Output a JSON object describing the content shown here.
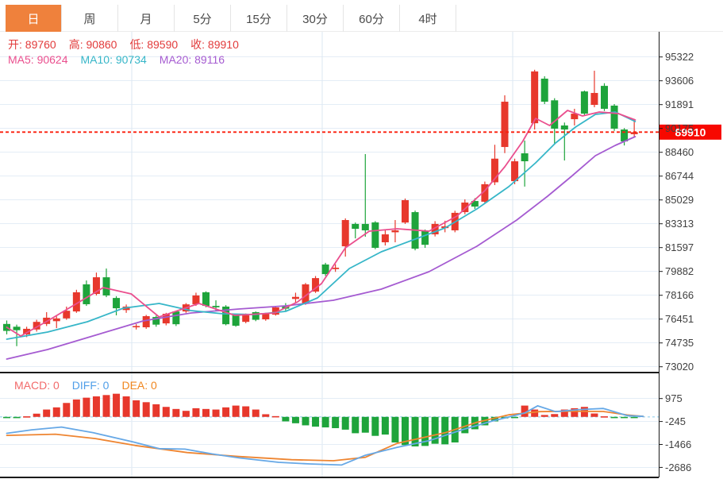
{
  "toolbar": {
    "active_color": "#ef813c",
    "tabs": [
      {
        "id": "day",
        "label": "日",
        "active": true
      },
      {
        "id": "week",
        "label": "周",
        "active": false
      },
      {
        "id": "month",
        "label": "月",
        "active": false
      },
      {
        "id": "5m",
        "label": "5分",
        "active": false
      },
      {
        "id": "15m",
        "label": "15分",
        "active": false
      },
      {
        "id": "30m",
        "label": "30分",
        "active": false
      },
      {
        "id": "60m",
        "label": "60分",
        "active": false
      },
      {
        "id": "4h",
        "label": "4时",
        "active": false
      }
    ]
  },
  "legend": {
    "ohlc_color": "#e23b3b",
    "ohlc": [
      {
        "label": "开:",
        "value": "89760"
      },
      {
        "label": "高:",
        "value": "90860"
      },
      {
        "label": "低:",
        "value": "89590"
      },
      {
        "label": "收:",
        "value": "89910"
      }
    ],
    "ma": [
      {
        "label": "MA5:",
        "value": "90624",
        "color": "#ea4f8e"
      },
      {
        "label": "MA10:",
        "value": "90734",
        "color": "#36b6c8"
      },
      {
        "label": "MA20:",
        "value": "89116",
        "color": "#a55bd1"
      }
    ],
    "macd": [
      {
        "label": "MACD:",
        "value": "0",
        "color": "#f26a6a"
      },
      {
        "label": "DIFF:",
        "value": "0",
        "color": "#4f9ee8"
      },
      {
        "label": "DEA:",
        "value": "0",
        "color": "#f0861e"
      }
    ]
  },
  "chart_data": {
    "type": "candlestick",
    "note": "Chinese convention: red = up candle, green = down candle. Candles are [open,high,low,close].",
    "colors": {
      "up": "#e7382c",
      "down": "#1ea43b",
      "ma5": "#ea4f8e",
      "ma10": "#36b6c8",
      "ma20": "#a55bd1",
      "diff": "#66a8e6",
      "dea": "#ee8531",
      "grid": "#e4edf6",
      "vgrid": "#dbe7f2",
      "axis_text": "#404040",
      "frame": "#1a1a1a",
      "dotted_line": "#fb1d0a",
      "tag_bg": "#f70800",
      "tag_text": "#ffffff",
      "zero_line": "#a8d8f0"
    },
    "price_axis": {
      "labels": [
        "95322",
        "93606",
        "91891",
        "90175",
        "88460",
        "86744",
        "85029",
        "83313",
        "81597",
        "79882",
        "78166",
        "76451",
        "74735",
        "73020"
      ],
      "max": 95322,
      "step": 1715.7
    },
    "last_price": "89910",
    "last_price_value": 89910,
    "candles": [
      [
        76100,
        76350,
        75350,
        75600
      ],
      [
        75900,
        76050,
        74500,
        75650
      ],
      [
        75350,
        75900,
        75150,
        75750
      ],
      [
        75700,
        76400,
        75550,
        76250
      ],
      [
        76100,
        76950,
        75950,
        76550
      ],
      [
        76300,
        76650,
        75800,
        76500
      ],
      [
        76500,
        77350,
        76400,
        77050
      ],
      [
        77000,
        78560,
        76900,
        78380
      ],
      [
        78950,
        79230,
        77400,
        77520
      ],
      [
        78260,
        79800,
        78150,
        79460
      ],
      [
        79460,
        80090,
        78030,
        78150
      ],
      [
        77970,
        78100,
        76720,
        77230
      ],
      [
        77100,
        77500,
        76900,
        77350
      ],
      [
        75900,
        76100,
        75700,
        75950
      ],
      [
        75860,
        76750,
        75750,
        76660
      ],
      [
        76600,
        76700,
        75900,
        76050
      ],
      [
        76140,
        76900,
        76000,
        76830
      ],
      [
        77000,
        77050,
        75950,
        76080
      ],
      [
        77000,
        77600,
        76900,
        77510
      ],
      [
        77520,
        78350,
        77400,
        78150
      ],
      [
        78380,
        78450,
        77300,
        77400
      ],
      [
        77400,
        77800,
        77000,
        77300
      ],
      [
        77350,
        77450,
        76000,
        76080
      ],
      [
        76720,
        76800,
        75900,
        75970
      ],
      [
        76250,
        76850,
        76150,
        76720
      ],
      [
        76950,
        77000,
        76300,
        76400
      ],
      [
        76430,
        76900,
        76330,
        76830
      ],
      [
        76770,
        77350,
        76700,
        77290
      ],
      [
        77350,
        77600,
        77050,
        77200
      ],
      [
        77900,
        78350,
        77650,
        78050
      ],
      [
        77580,
        79050,
        77480,
        78950
      ],
      [
        78430,
        79550,
        78330,
        79400
      ],
      [
        80380,
        80500,
        79550,
        79690
      ],
      [
        80050,
        80400,
        79850,
        80150
      ],
      [
        81690,
        83700,
        80950,
        83580
      ],
      [
        83300,
        83400,
        82260,
        82950
      ],
      [
        83300,
        88330,
        82380,
        82840
      ],
      [
        83410,
        83500,
        81480,
        81580
      ],
      [
        81980,
        82840,
        81750,
        82550
      ],
      [
        82700,
        83580,
        81980,
        82840
      ],
      [
        83400,
        85130,
        83300,
        85010
      ],
      [
        84150,
        84260,
        81400,
        81520
      ],
      [
        82800,
        82900,
        81580,
        81800
      ],
      [
        82550,
        83500,
        82400,
        83300
      ],
      [
        83000,
        83530,
        82700,
        83130
      ],
      [
        82840,
        84250,
        82700,
        84100
      ],
      [
        84150,
        85070,
        84000,
        84840
      ],
      [
        84950,
        85150,
        84380,
        84550
      ],
      [
        84900,
        86350,
        84780,
        86160
      ],
      [
        86300,
        89000,
        86100,
        88000
      ],
      [
        88840,
        92560,
        88400,
        92100
      ],
      [
        86380,
        88000,
        86160,
        87810
      ],
      [
        88385,
        89300,
        85990,
        87813
      ],
      [
        90550,
        94400,
        90100,
        94280
      ],
      [
        93760,
        93930,
        91930,
        92100
      ],
      [
        92200,
        92350,
        89010,
        90160
      ],
      [
        90390,
        90600,
        87870,
        90100
      ],
      [
        90840,
        91590,
        90390,
        91240
      ],
      [
        92840,
        92900,
        91100,
        91240
      ],
      [
        91870,
        94330,
        91700,
        92730
      ],
      [
        93240,
        93430,
        91430,
        91590
      ],
      [
        91820,
        91930,
        90000,
        90160
      ],
      [
        90100,
        90200,
        88950,
        89240
      ],
      [
        89760,
        90860,
        89590,
        89910
      ]
    ],
    "ma5_points": [
      [
        0,
        75860
      ],
      [
        1.4,
        75231
      ],
      [
        4.1,
        76317
      ],
      [
        7.3,
        77690
      ],
      [
        9.7,
        78719
      ],
      [
        12.5,
        78262
      ],
      [
        15.3,
        76603
      ],
      [
        19.3,
        77575
      ],
      [
        22.9,
        76717
      ],
      [
        26.9,
        76889
      ],
      [
        29.2,
        77690
      ],
      [
        31.6,
        79005
      ],
      [
        34,
        81579
      ],
      [
        36.4,
        82780
      ],
      [
        39.2,
        82952
      ],
      [
        42.4,
        82780
      ],
      [
        45.2,
        83866
      ],
      [
        48,
        85696
      ],
      [
        50,
        87412
      ],
      [
        51.8,
        89242
      ],
      [
        53.1,
        90901
      ],
      [
        54.5,
        90386
      ],
      [
        56.3,
        91473
      ],
      [
        57.8,
        91072
      ],
      [
        59.5,
        91358
      ],
      [
        61.4,
        91244
      ],
      [
        63.1,
        90786
      ]
    ],
    "ma10_points": [
      [
        0,
        75002
      ],
      [
        4.1,
        75517
      ],
      [
        8.1,
        76260
      ],
      [
        11.7,
        77232
      ],
      [
        15.3,
        77575
      ],
      [
        18.5,
        77060
      ],
      [
        21.7,
        76832
      ],
      [
        24.9,
        76774
      ],
      [
        28,
        77003
      ],
      [
        31.2,
        77975
      ],
      [
        34.4,
        80092
      ],
      [
        37.6,
        81293
      ],
      [
        40.8,
        82151
      ],
      [
        44,
        83009
      ],
      [
        47.2,
        84381
      ],
      [
        50.4,
        85982
      ],
      [
        53.1,
        87698
      ],
      [
        55.1,
        89128
      ],
      [
        57.1,
        90272
      ],
      [
        59.1,
        91187
      ],
      [
        61.1,
        91358
      ],
      [
        63.1,
        90672
      ]
    ],
    "ma20_points": [
      [
        0,
        73572
      ],
      [
        4.1,
        74258
      ],
      [
        8.9,
        75288
      ],
      [
        13.7,
        76317
      ],
      [
        18.5,
        76889
      ],
      [
        23.3,
        77175
      ],
      [
        28,
        77403
      ],
      [
        32.8,
        77804
      ],
      [
        37.6,
        78604
      ],
      [
        42.4,
        79863
      ],
      [
        47.2,
        81693
      ],
      [
        51.2,
        83580
      ],
      [
        54.3,
        85296
      ],
      [
        56.7,
        86725
      ],
      [
        59.1,
        88212
      ],
      [
        61.1,
        88956
      ],
      [
        63.1,
        89585
      ]
    ],
    "macd": {
      "axis_labels": [
        "975",
        "-245",
        "-1466",
        "-2686"
      ],
      "axis_max": 975,
      "axis_step": 1220.5,
      "histogram": [
        -30,
        -40,
        30,
        170,
        390,
        505,
        740,
        925,
        1020,
        1090,
        1160,
        1230,
        1090,
        880,
        780,
        670,
        530,
        420,
        320,
        460,
        420,
        390,
        505,
        600,
        560,
        390,
        140,
        40,
        -240,
        -340,
        -450,
        -520,
        -560,
        -600,
        -680,
        -870,
        -840,
        -1010,
        -940,
        -1360,
        -1500,
        -1570,
        -1545,
        -1430,
        -1460,
        -1360,
        -870,
        -660,
        -450,
        -240,
        -80,
        -60,
        600,
        390,
        100,
        150,
        390,
        460,
        530,
        180,
        30,
        -30,
        -10,
        -5
      ],
      "diff_points": [
        [
          0,
          -875
        ],
        [
          2.5,
          -690
        ],
        [
          5.5,
          -540
        ],
        [
          8.7,
          -845
        ],
        [
          12.7,
          -1335
        ],
        [
          15.3,
          -1690
        ],
        [
          17.9,
          -1717
        ],
        [
          20.6,
          -1970
        ],
        [
          23.3,
          -2180
        ],
        [
          27.3,
          -2415
        ],
        [
          30.4,
          -2500
        ],
        [
          33.6,
          -2560
        ],
        [
          36,
          -2040
        ],
        [
          39.2,
          -1617
        ],
        [
          42.4,
          -1267
        ],
        [
          45.6,
          -707
        ],
        [
          48.8,
          -215
        ],
        [
          52,
          206
        ],
        [
          53.3,
          585
        ],
        [
          55.1,
          278
        ],
        [
          57.5,
          387
        ],
        [
          59.9,
          446
        ],
        [
          62.3,
          67
        ],
        [
          63.9,
          25
        ]
      ],
      "dea_points": [
        [
          0,
          -985
        ],
        [
          4.9,
          -920
        ],
        [
          8.9,
          -1152
        ],
        [
          12.9,
          -1520
        ],
        [
          18.1,
          -1898
        ],
        [
          23.3,
          -2109
        ],
        [
          28.6,
          -2277
        ],
        [
          32.8,
          -2330
        ],
        [
          36,
          -2150
        ],
        [
          39.2,
          -1406
        ],
        [
          44,
          -846
        ],
        [
          47.2,
          -286
        ],
        [
          50.4,
          109
        ],
        [
          53.5,
          278
        ],
        [
          56.7,
          300
        ],
        [
          59.9,
          285
        ],
        [
          62.3,
          100
        ],
        [
          63.9,
          25
        ]
      ]
    }
  }
}
